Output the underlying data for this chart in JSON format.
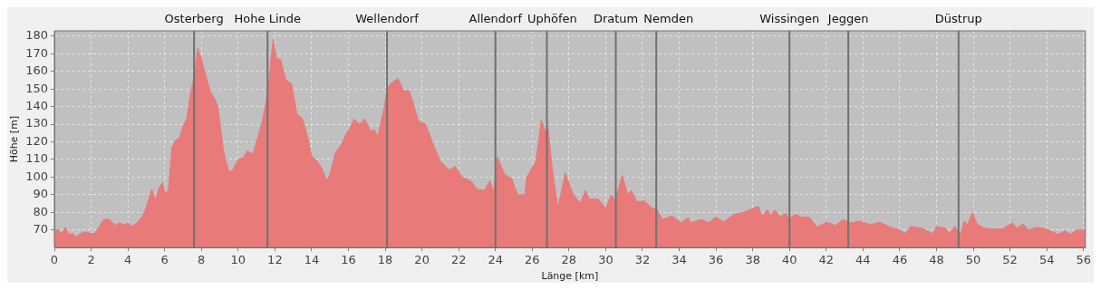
{
  "chart_data": {
    "type": "area",
    "xlabel": "Länge [km]",
    "ylabel": "Höhe [m]",
    "xlim": [
      0,
      56.1
    ],
    "ylim": [
      60,
      183
    ],
    "xticks": [
      0,
      2,
      4,
      6,
      8,
      10,
      12,
      14,
      16,
      18,
      20,
      22,
      24,
      26,
      28,
      30,
      32,
      34,
      36,
      38,
      40,
      42,
      44,
      46,
      48,
      50,
      52,
      54,
      56
    ],
    "yticks": [
      70,
      80,
      90,
      100,
      110,
      120,
      130,
      140,
      150,
      160,
      170,
      180
    ],
    "grid": true,
    "legend": false,
    "series": [
      {
        "color": "#e87a7a",
        "x": [
          0,
          0.2,
          0.4,
          0.6,
          0.8,
          1.0,
          1.2,
          1.4,
          1.7,
          2.0,
          2.2,
          2.5,
          2.7,
          3.0,
          3.3,
          3.5,
          3.8,
          4.0,
          4.2,
          4.5,
          4.8,
          5.0,
          5.3,
          5.5,
          5.7,
          5.9,
          6.0,
          6.2,
          6.4,
          6.6,
          6.8,
          7.0,
          7.2,
          7.4,
          7.6,
          7.8,
          8.0,
          8.2,
          8.5,
          8.7,
          8.9,
          9.2,
          9.5,
          9.7,
          10.0,
          10.3,
          10.5,
          10.8,
          11.0,
          11.3,
          11.6,
          11.9,
          12.1,
          12.3,
          12.6,
          12.9,
          13.2,
          13.5,
          13.8,
          14.0,
          14.3,
          14.6,
          14.8,
          15.0,
          15.3,
          15.6,
          15.9,
          16.1,
          16.3,
          16.6,
          16.9,
          17.2,
          17.4,
          17.6,
          17.9,
          18.1,
          18.3,
          18.7,
          19.0,
          19.3,
          19.5,
          19.8,
          20.2,
          20.6,
          21.0,
          21.5,
          21.8,
          22.2,
          22.7,
          23.0,
          23.4,
          23.7,
          23.9,
          24.1,
          24.5,
          24.9,
          25.2,
          25.6,
          25.7,
          26.2,
          26.5,
          26.7,
          26.85,
          27.1,
          27.4,
          27.8,
          28.2,
          28.6,
          28.9,
          29.1,
          29.6,
          30.0,
          30.3,
          30.5,
          30.9,
          31.2,
          31.4,
          31.7,
          32.1,
          32.5,
          32.8,
          33.1,
          33.6,
          34.1,
          34.5,
          34.6,
          35.2,
          35.6,
          36.0,
          36.4,
          37.0,
          37.5,
          38.3,
          38.5,
          38.8,
          39.0,
          39.2,
          39.5,
          39.8,
          40.0,
          40.3,
          40.6,
          41.1,
          41.5,
          42.0,
          42.5,
          42.9,
          43.3,
          43.8,
          44.4,
          44.9,
          45.5,
          46.0,
          46.3,
          46.6,
          47.2,
          47.8,
          48.0,
          48.5,
          48.7,
          49.0,
          49.3,
          49.5,
          49.7,
          49.95,
          50.2,
          50.6,
          51.0,
          51.6,
          52.1,
          52.4,
          52.7,
          53.0,
          53.5,
          54.0,
          54.6,
          55.0,
          55.3,
          55.6,
          56.1
        ],
        "values": [
          70,
          70,
          68,
          71.5,
          67.5,
          68,
          66,
          68,
          69,
          68,
          68,
          73,
          76,
          76,
          72.5,
          74,
          73,
          74,
          72,
          74,
          78,
          83,
          93,
          87,
          94,
          97,
          91,
          92,
          117,
          121,
          122,
          129,
          133,
          147,
          157,
          173,
          167,
          159,
          148,
          145,
          140,
          115,
          103,
          104,
          110,
          111,
          115,
          113,
          120,
          131,
          148,
          178,
          167,
          167,
          155,
          153,
          136,
          133,
          122,
          112,
          109,
          104,
          98,
          102,
          114,
          118,
          125,
          128,
          133,
          130,
          133,
          126,
          127,
          123,
          137,
          150,
          153,
          156,
          149,
          149,
          143,
          132,
          130,
          119,
          109,
          104,
          106,
          100,
          97.5,
          93,
          92.5,
          98,
          91,
          111.5,
          101.5,
          99,
          90,
          90,
          100,
          109,
          132.5,
          126,
          129,
          104,
          82.5,
          102.5,
          91,
          85,
          92.5,
          87.5,
          87.5,
          82.5,
          90,
          86.5,
          101,
          90,
          92.5,
          86,
          86.5,
          82.5,
          81.5,
          76,
          78,
          74,
          77,
          74,
          76,
          74,
          77.5,
          74.5,
          79,
          80,
          83.5,
          78,
          81.5,
          78,
          81.5,
          77.5,
          79.5,
          76,
          79,
          77.5,
          77,
          71.5,
          74.5,
          72.5,
          76,
          74,
          75,
          73,
          74.5,
          71.5,
          70,
          68,
          72,
          71,
          68,
          72,
          71,
          68,
          72,
          67.5,
          75,
          73,
          80,
          73.5,
          71,
          70.5,
          70.5,
          74,
          71,
          73.5,
          70,
          71.5,
          70.5,
          67.5,
          69.5,
          67.5,
          70,
          70
        ]
      }
    ],
    "ref_lines": [
      {
        "axis": "x",
        "value": 7.6,
        "label": "Osterberg",
        "color": "#707070"
      },
      {
        "axis": "x",
        "value": 11.6,
        "label": "Hohe Linde",
        "color": "#707070"
      },
      {
        "axis": "x",
        "value": 18.1,
        "label": "Wellendorf",
        "color": "#707070"
      },
      {
        "axis": "x",
        "value": 24.0,
        "label": "Allendorf",
        "color": "#707070"
      },
      {
        "axis": "x",
        "value": 26.8,
        "label": "Uphöfen",
        "color": "#707070"
      },
      {
        "axis": "x",
        "value": 30.55,
        "label": "Dratum",
        "color": "#707070"
      },
      {
        "axis": "x",
        "value": 32.75,
        "label": "Nemden",
        "color": "#707070"
      },
      {
        "axis": "x",
        "value": 40.0,
        "label": "Wissingen",
        "color": "#707070"
      },
      {
        "axis": "x",
        "value": 43.2,
        "label": "Jeggen",
        "color": "#707070"
      },
      {
        "axis": "x",
        "value": 49.2,
        "label": "Düstrup",
        "color": "#707070"
      }
    ]
  }
}
